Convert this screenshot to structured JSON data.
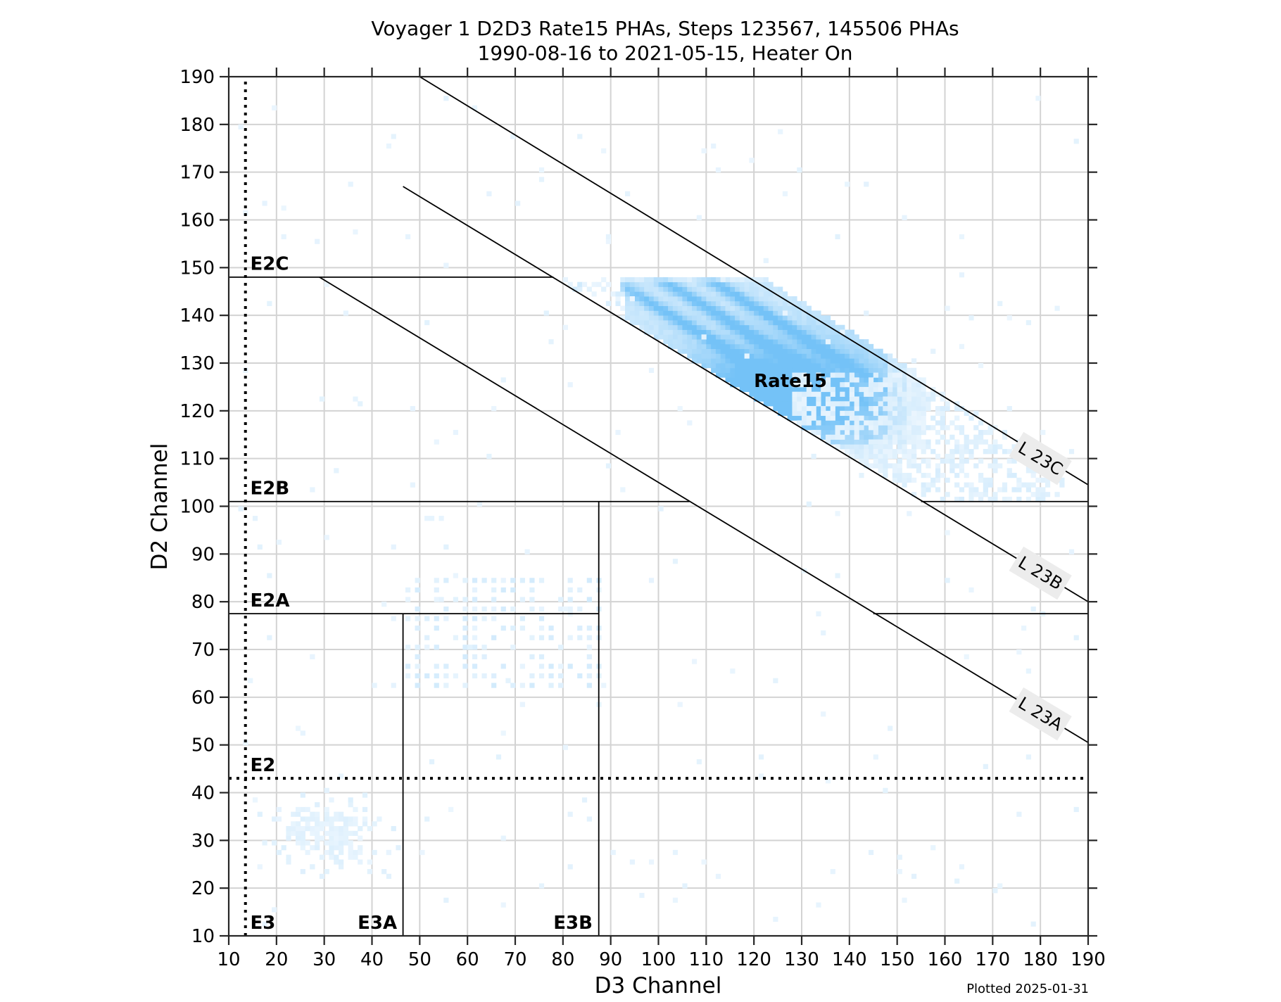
{
  "chart_data": {
    "type": "heatmap",
    "title": "Voyager 1 D2D3 Rate15 PHAs, Steps 123567, 145506 PHAs",
    "subtitle": "1990-08-16 to 2021-05-15, Heater On",
    "xlabel": "D3 Channel",
    "ylabel": "D2 Channel",
    "xlim": [
      10,
      190
    ],
    "ylim": [
      10,
      190
    ],
    "xticks": [
      10,
      20,
      30,
      40,
      50,
      60,
      70,
      80,
      90,
      100,
      110,
      120,
      130,
      140,
      150,
      160,
      170,
      180,
      190
    ],
    "yticks": [
      10,
      20,
      30,
      40,
      50,
      60,
      70,
      80,
      90,
      100,
      110,
      120,
      130,
      140,
      150,
      160,
      170,
      180,
      190
    ],
    "grid": true,
    "colormap_max_color": "#74c2f7",
    "colormap_min_color": "#eef7fe",
    "footnote": "Plotted 2025-01-31",
    "boundary_lines": [
      {
        "name": "E2C",
        "type": "solid",
        "points": [
          [
            10,
            148
          ],
          [
            78,
            148
          ]
        ]
      },
      {
        "name": "E2B-left",
        "type": "solid",
        "points": [
          [
            10,
            101
          ],
          [
            106.5,
            101
          ]
        ]
      },
      {
        "name": "E2B-right",
        "type": "solid",
        "points": [
          [
            155,
            101
          ],
          [
            190,
            101
          ]
        ]
      },
      {
        "name": "E2A-left",
        "type": "solid",
        "points": [
          [
            10,
            77.5
          ],
          [
            87.5,
            77.5
          ]
        ]
      },
      {
        "name": "E2A-right",
        "type": "solid",
        "points": [
          [
            145,
            77.5
          ],
          [
            190,
            77.5
          ]
        ]
      },
      {
        "name": "E3A",
        "type": "solid",
        "points": [
          [
            46.5,
            10
          ],
          [
            46.5,
            77.5
          ]
        ]
      },
      {
        "name": "E3B",
        "type": "solid",
        "points": [
          [
            87.5,
            10
          ],
          [
            87.5,
            101
          ]
        ]
      },
      {
        "name": "L23A",
        "type": "solid",
        "points": [
          [
            29,
            148
          ],
          [
            190,
            50.5
          ]
        ]
      },
      {
        "name": "L23B",
        "type": "solid",
        "points": [
          [
            46.5,
            167
          ],
          [
            190,
            80
          ]
        ]
      },
      {
        "name": "L23C",
        "type": "solid",
        "points": [
          [
            50,
            190
          ],
          [
            190,
            104.5
          ]
        ]
      },
      {
        "name": "E2",
        "type": "dotted",
        "points": [
          [
            10,
            43
          ],
          [
            190,
            43
          ]
        ]
      },
      {
        "name": "E3",
        "type": "dotted",
        "points": [
          [
            13.5,
            10
          ],
          [
            13.5,
            190
          ]
        ]
      }
    ],
    "region_labels": [
      {
        "text": "E2C",
        "x": 14.5,
        "y": 149.5
      },
      {
        "text": "E2B",
        "x": 14.5,
        "y": 102.5
      },
      {
        "text": "E2A",
        "x": 14.5,
        "y": 79
      },
      {
        "text": "E2",
        "x": 14.5,
        "y": 44.5
      },
      {
        "text": "E3",
        "x": 14.5,
        "y": 11.5
      },
      {
        "text": "E3A",
        "x": 37,
        "y": 11.5
      },
      {
        "text": "E3B",
        "x": 78,
        "y": 11.5
      },
      {
        "text": "Rate15",
        "x": 120,
        "y": 125
      }
    ],
    "line_labels": [
      {
        "text": "L 23C",
        "x": 180,
        "y": 110,
        "angle": 31
      },
      {
        "text": "L 23B",
        "x": 180,
        "y": 86,
        "angle": 31
      },
      {
        "text": "L 23A",
        "x": 180,
        "y": 56.5,
        "angle": 31
      }
    ],
    "density_regions": [
      {
        "name": "Rate15 main band",
        "peak_d3": 120,
        "peak_d2": 125,
        "intensity": "high",
        "bounds": "between L23B and L23C, D2 113-148, D3 92-152"
      },
      {
        "name": "Rate15 streaks",
        "intensity": "high",
        "streaks_d2_offsets": [
          6,
          14,
          22
        ]
      },
      {
        "name": "Fringe below Rate15",
        "intensity": "low",
        "bounds": "D3 135-180, D2 101-125"
      },
      {
        "name": "E2A/E3B cluster",
        "intensity": "low",
        "bounds": "D3 47-88, D2 65-85"
      },
      {
        "name": "E3A/E2 cluster",
        "intensity": "low",
        "bounds": "D3 15-45, D2 25-40"
      }
    ]
  }
}
